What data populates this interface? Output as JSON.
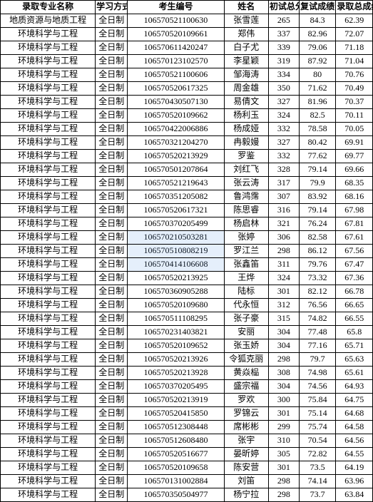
{
  "table": {
    "headers": [
      "录取专业名称",
      "学习方式",
      "考生编号",
      "姓名",
      "初试总分",
      "复试成绩",
      "录取总成绩"
    ],
    "col_classes": [
      "col-major",
      "col-mode",
      "col-id",
      "col-name",
      "col-s1",
      "col-s2",
      "col-s3"
    ],
    "rows": [
      [
        "地质资源与地质工程",
        "全日制",
        "106570521100630",
        "张雪莲",
        "265",
        "84.3",
        "62.39"
      ],
      [
        "环境科学与工程",
        "全日制",
        "106570520109661",
        "郑伟",
        "337",
        "82.96",
        "72.07"
      ],
      [
        "环境科学与工程",
        "全日制",
        "106570611420247",
        "白子尤",
        "339",
        "79.06",
        "71.18"
      ],
      [
        "环境科学与工程",
        "全日制",
        "106570123102570",
        "李星颖",
        "319",
        "87.92",
        "71.04"
      ],
      [
        "环境科学与工程",
        "全日制",
        "106570521100606",
        "邹海涛",
        "334",
        "80",
        "70.76"
      ],
      [
        "环境科学与工程",
        "全日制",
        "106570520617325",
        "周金雄",
        "350",
        "71.62",
        "70.49"
      ],
      [
        "环境科学与工程",
        "全日制",
        "106570430507130",
        "易倩文",
        "327",
        "81.96",
        "70.37"
      ],
      [
        "环境科学与工程",
        "全日制",
        "106570520109662",
        "杨利玉",
        "324",
        "82.5",
        "70.11"
      ],
      [
        "环境科学与工程",
        "全日制",
        "106570422006886",
        "杨成娅",
        "332",
        "78.58",
        "70.05"
      ],
      [
        "环境科学与工程",
        "全日制",
        "106570321204270",
        "冉毅嫚",
        "327",
        "80.42",
        "69.91"
      ],
      [
        "环境科学与工程",
        "全日制",
        "106570520213929",
        "罗鉴",
        "332",
        "77.62",
        "69.77"
      ],
      [
        "环境科学与工程",
        "全日制",
        "106570501207864",
        "刘红飞",
        "328",
        "79.14",
        "69.66"
      ],
      [
        "环境科学与工程",
        "全日制",
        "106570521219643",
        "张云涛",
        "317",
        "79.9",
        "68.35"
      ],
      [
        "环境科学与工程",
        "全日制",
        "106570351205082",
        "鲁鸿霈",
        "307",
        "83.92",
        "68.16"
      ],
      [
        "环境科学与工程",
        "全日制",
        "106570520617321",
        "陈思睿",
        "316",
        "79.14",
        "67.98"
      ],
      [
        "环境科学与工程",
        "全日制",
        "106570370205499",
        "杨启林",
        "321",
        "76.24",
        "67.81"
      ],
      [
        "环境科学与工程",
        "全日制",
        "106570210503281",
        "张婷",
        "306",
        "82.58",
        "67.61"
      ],
      [
        "环境科学与工程",
        "全日制",
        "106570510808219",
        "罗江兰",
        "298",
        "86.12",
        "67.56"
      ],
      [
        "环境科学与工程",
        "全日制",
        "106570414106608",
        "张鑫笛",
        "311",
        "79.76",
        "67.47"
      ],
      [
        "环境科学与工程",
        "全日制",
        "106570520213925",
        "王烨",
        "324",
        "73.32",
        "67.36"
      ],
      [
        "环境科学与工程",
        "全日制",
        "106570360905288",
        "陆标",
        "301",
        "82.12",
        "66.78"
      ],
      [
        "环境科学与工程",
        "全日制",
        "106570520109680",
        "代永恒",
        "312",
        "76.56",
        "66.65"
      ],
      [
        "环境科学与工程",
        "全日制",
        "106570511108295",
        "张子豪",
        "315",
        "74.82",
        "66.55"
      ],
      [
        "环境科学与工程",
        "全日制",
        "106570231403821",
        "安丽",
        "304",
        "77.48",
        "65.8"
      ],
      [
        "环境科学与工程",
        "全日制",
        "106570520109652",
        "张玉娇",
        "304",
        "77.16",
        "65.71"
      ],
      [
        "环境科学与工程",
        "全日制",
        "106570520213926",
        "令狐克丽",
        "298",
        "79.7",
        "65.63"
      ],
      [
        "环境科学与工程",
        "全日制",
        "106570520213928",
        "黄焱榀",
        "308",
        "74.98",
        "65.61"
      ],
      [
        "环境科学与工程",
        "全日制",
        "106570370205495",
        "盛宗福",
        "304",
        "74.56",
        "64.93"
      ],
      [
        "环境科学与工程",
        "全日制",
        "106570520213919",
        "罗欢",
        "300",
        "75.84",
        "64.75"
      ],
      [
        "环境科学与工程",
        "全日制",
        "106570520415850",
        "罗锦云",
        "301",
        "75.14",
        "64.68"
      ],
      [
        "环境科学与工程",
        "全日制",
        "106570512308448",
        "席彬彬",
        "299",
        "75.74",
        "64.58"
      ],
      [
        "环境科学与工程",
        "全日制",
        "106570512608480",
        "张宇",
        "310",
        "70.54",
        "64.56"
      ],
      [
        "环境科学与工程",
        "全日制",
        "106570520516677",
        "晏昕婷",
        "305",
        "72.82",
        "64.55"
      ],
      [
        "环境科学与工程",
        "全日制",
        "106570520109658",
        "陈安营",
        "301",
        "73.5",
        "64.19"
      ],
      [
        "环境科学与工程",
        "全日制",
        "106570131002884",
        "刘笛",
        "298",
        "74.14",
        "63.96"
      ],
      [
        "环境科学与工程",
        "全日制",
        "106570350504977",
        "杨宁拉",
        "298",
        "73.7",
        "63.84"
      ]
    ],
    "watermark_rows": [
      16,
      17,
      18
    ]
  },
  "styles": {
    "border_color": "#000000",
    "bg_color": "#ffffff",
    "font_size": 12,
    "header_font_weight": "bold"
  }
}
